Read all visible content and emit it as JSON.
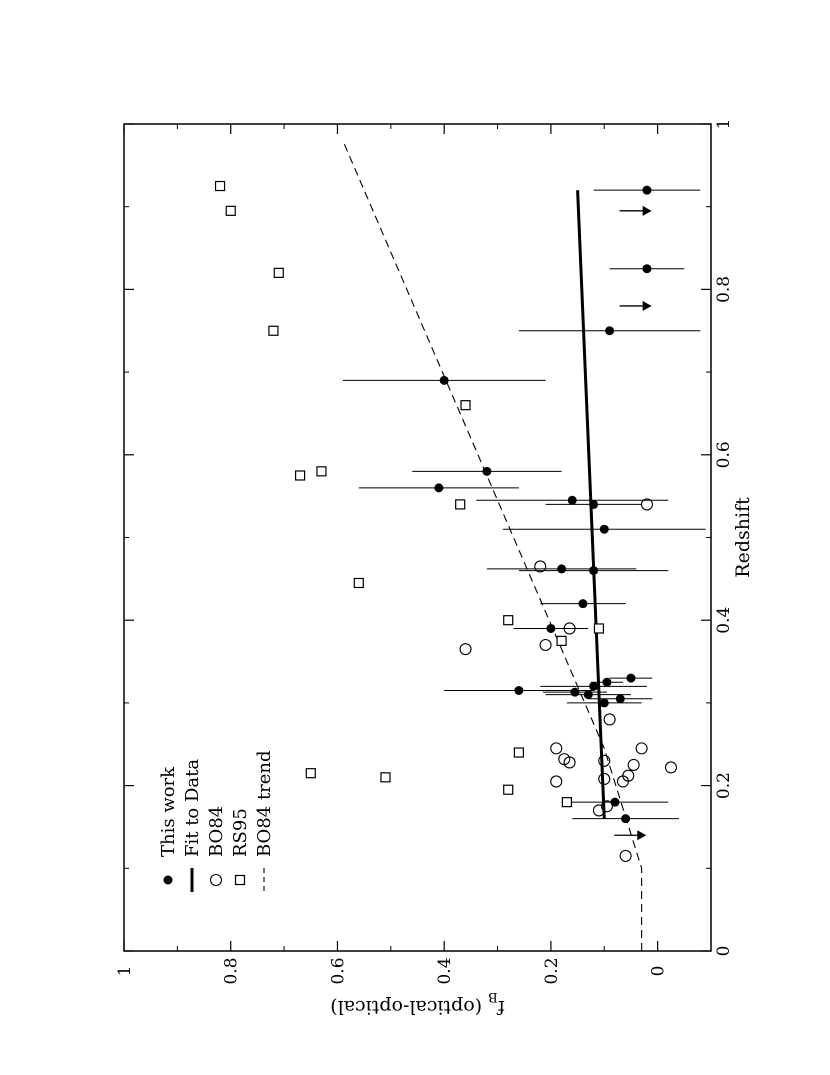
{
  "chart_data": {
    "type": "scatter",
    "orientation": "rotated-90",
    "title": "",
    "xlabel": "Redshift",
    "ylabel_parts": {
      "main": "f",
      "sub": "B",
      "rest": " (optical-optical)"
    },
    "xlim": [
      0,
      1
    ],
    "ylim": [
      -0.1,
      1
    ],
    "xticks": [
      0,
      0.2,
      0.4,
      0.6,
      0.8,
      1
    ],
    "xtick_labels": [
      "0",
      "0.2",
      "0.4",
      "0.6",
      "0.8",
      "1"
    ],
    "yticks": [
      0,
      0.2,
      0.4,
      0.6,
      0.8,
      1
    ],
    "ytick_labels": [
      "0",
      "0.2",
      "0.4",
      "0.6",
      "0.8",
      "1"
    ],
    "grid": false,
    "legend_position": "top-left",
    "legend": [
      {
        "label": "This work",
        "marker": "filled-circle"
      },
      {
        "label": "Fit to Data",
        "marker": "solid-line"
      },
      {
        "label": "BO84",
        "marker": "open-circle"
      },
      {
        "label": "RS95",
        "marker": "open-square"
      },
      {
        "label": "BO84 trend",
        "marker": "dashed-line"
      }
    ],
    "series": [
      {
        "name": "This work",
        "style": "filled-circle",
        "points": [
          {
            "x": 0.16,
            "y": 0.06,
            "yerr": 0.1
          },
          {
            "x": 0.18,
            "y": 0.08,
            "yerr": 0.1
          },
          {
            "x": 0.3,
            "y": 0.1,
            "yerr": 0.07
          },
          {
            "x": 0.305,
            "y": 0.07,
            "yerr": 0.06
          },
          {
            "x": 0.31,
            "y": 0.13,
            "yerr": 0.08
          },
          {
            "x": 0.313,
            "y": 0.155,
            "yerr": 0.06
          },
          {
            "x": 0.315,
            "y": 0.26,
            "yerr": 0.14
          },
          {
            "x": 0.32,
            "y": 0.12,
            "yerr": 0.1
          },
          {
            "x": 0.325,
            "y": 0.095,
            "yerr": 0.03
          },
          {
            "x": 0.33,
            "y": 0.05,
            "yerr": 0.04
          },
          {
            "x": 0.39,
            "y": 0.2,
            "yerr": 0.07
          },
          {
            "x": 0.42,
            "y": 0.14,
            "yerr": 0.08
          },
          {
            "x": 0.46,
            "y": 0.12,
            "yerr": 0.14
          },
          {
            "x": 0.462,
            "y": 0.18,
            "yerr": 0.14
          },
          {
            "x": 0.51,
            "y": 0.1,
            "yerr": 0.19
          },
          {
            "x": 0.54,
            "y": 0.12,
            "yerr": 0.09
          },
          {
            "x": 0.545,
            "y": 0.16,
            "yerr": 0.18
          },
          {
            "x": 0.56,
            "y": 0.41,
            "yerr": 0.15
          },
          {
            "x": 0.58,
            "y": 0.32,
            "yerr": 0.14
          },
          {
            "x": 0.69,
            "y": 0.4,
            "yerr": 0.19
          },
          {
            "x": 0.75,
            "y": 0.09,
            "yerr": 0.17
          },
          {
            "x": 0.825,
            "y": 0.02,
            "yerr": 0.07
          },
          {
            "x": 0.92,
            "y": 0.02,
            "yerr": 0.1
          }
        ]
      },
      {
        "name": "This work (upper limits)",
        "style": "arrow-down",
        "points": [
          {
            "x": 0.14,
            "y": 0.04
          },
          {
            "x": 0.78,
            "y": 0.03
          },
          {
            "x": 0.895,
            "y": 0.03
          }
        ]
      },
      {
        "name": "BO84",
        "style": "open-circle",
        "points": [
          {
            "x": 0.115,
            "y": 0.06
          },
          {
            "x": 0.17,
            "y": 0.11
          },
          {
            "x": 0.175,
            "y": 0.095
          },
          {
            "x": 0.205,
            "y": 0.19
          },
          {
            "x": 0.208,
            "y": 0.1
          },
          {
            "x": 0.212,
            "y": 0.055
          },
          {
            "x": 0.205,
            "y": 0.065
          },
          {
            "x": 0.222,
            "y": -0.025
          },
          {
            "x": 0.225,
            "y": 0.045
          },
          {
            "x": 0.228,
            "y": 0.165
          },
          {
            "x": 0.23,
            "y": 0.1
          },
          {
            "x": 0.232,
            "y": 0.175
          },
          {
            "x": 0.245,
            "y": 0.19
          },
          {
            "x": 0.245,
            "y": 0.03
          },
          {
            "x": 0.28,
            "y": 0.09
          },
          {
            "x": 0.365,
            "y": 0.36
          },
          {
            "x": 0.37,
            "y": 0.21
          },
          {
            "x": 0.39,
            "y": 0.165
          },
          {
            "x": 0.465,
            "y": 0.22
          },
          {
            "x": 0.54,
            "y": 0.02
          }
        ]
      },
      {
        "name": "RS95",
        "style": "open-square",
        "points": [
          {
            "x": 0.18,
            "y": 0.17
          },
          {
            "x": 0.195,
            "y": 0.28
          },
          {
            "x": 0.21,
            "y": 0.51
          },
          {
            "x": 0.215,
            "y": 0.65
          },
          {
            "x": 0.24,
            "y": 0.26
          },
          {
            "x": 0.375,
            "y": 0.18
          },
          {
            "x": 0.39,
            "y": 0.11
          },
          {
            "x": 0.4,
            "y": 0.28
          },
          {
            "x": 0.445,
            "y": 0.56
          },
          {
            "x": 0.54,
            "y": 0.37
          },
          {
            "x": 0.575,
            "y": 0.67
          },
          {
            "x": 0.58,
            "y": 0.63
          },
          {
            "x": 0.66,
            "y": 0.36
          },
          {
            "x": 0.75,
            "y": 0.72
          },
          {
            "x": 0.82,
            "y": 0.71
          },
          {
            "x": 0.895,
            "y": 0.8
          },
          {
            "x": 0.925,
            "y": 0.82
          }
        ]
      },
      {
        "name": "Fit to Data",
        "style": "solid-line",
        "points": [
          {
            "x": 0.16,
            "y": 0.1
          },
          {
            "x": 0.92,
            "y": 0.15
          }
        ]
      },
      {
        "name": "BO84 trend",
        "style": "dashed-line",
        "points": [
          {
            "x": 0,
            "y": 0.03
          },
          {
            "x": 0.1,
            "y": 0.03
          },
          {
            "x": 0.245,
            "y": 0.1
          },
          {
            "x": 0.98,
            "y": 0.59
          }
        ]
      }
    ]
  }
}
